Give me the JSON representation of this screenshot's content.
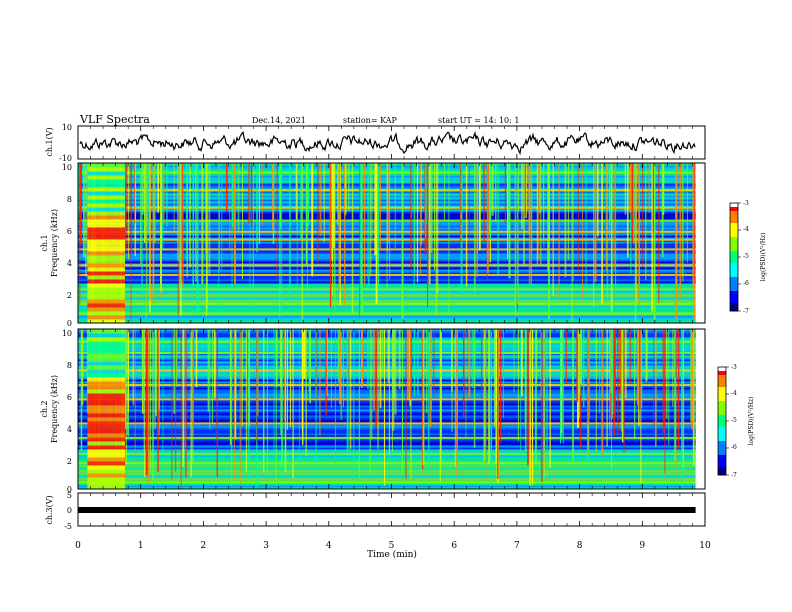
{
  "header": {
    "title": "VLF Spectra",
    "date": "Dec.14, 2021",
    "station": "station= KAP",
    "start": "start UT =  14: 10: 1"
  },
  "chart_data": [
    {
      "type": "line",
      "name": "ch1-waveform",
      "ylabel": "ch.1(V)",
      "ylim": [
        -10,
        10
      ],
      "yticks": [
        "10",
        "-10"
      ],
      "xlim": [
        0,
        10
      ],
      "series_color": "#000000"
    },
    {
      "type": "heatmap",
      "name": "ch1-spectrogram",
      "ylabel": "ch.1\nFrequency (kHz)",
      "ylabel_top": "ch.1",
      "ylabel_bottom": "Frequency (kHz)",
      "ylim": [
        0,
        10
      ],
      "yticks": [
        "0",
        "2",
        "4",
        "6",
        "8",
        "10"
      ],
      "xlim": [
        0,
        10
      ],
      "colorbar": {
        "label": "log(PSD)(V²/Hz)",
        "range": [
          -7,
          -3
        ],
        "ticks": [
          "-3",
          "-4",
          "-5",
          "-6",
          "-7"
        ],
        "colors": [
          "#000080",
          "#0000ff",
          "#0080ff",
          "#00ffff",
          "#00ff80",
          "#80ff00",
          "#ffff00",
          "#ff8000",
          "#ff0000",
          "#ffffff"
        ]
      },
      "bands_khz": [
        0.6,
        1.2,
        2.1,
        3.0,
        3.6,
        4.6,
        5.2,
        5.7,
        6.4,
        7.2,
        8.3,
        9.4
      ],
      "burst_min": [
        0.15,
        0.75
      ]
    },
    {
      "type": "heatmap",
      "name": "ch2-spectrogram",
      "ylabel_top": "ch.2",
      "ylabel_bottom": "Frequency (kHz)",
      "ylim": [
        0,
        10
      ],
      "yticks": [
        "0",
        "2",
        "4",
        "6",
        "8",
        "10"
      ],
      "xlim": [
        0,
        10
      ],
      "colorbar": {
        "label": "log(PSD)(V²/Hz)",
        "range": [
          -7,
          -3
        ],
        "ticks": [
          "-3",
          "-4",
          "-5",
          "-6",
          "-7"
        ]
      },
      "bands_khz": [
        0.4,
        1.6,
        2.2,
        3.2,
        4.1,
        5.6,
        6.5,
        7.4,
        8.5,
        9.2
      ],
      "burst_min": [
        0.15,
        0.75
      ]
    },
    {
      "type": "line",
      "name": "ch3-waveform",
      "ylabel": "ch.3(V)",
      "ylim": [
        -5,
        5
      ],
      "yticks": [
        "5",
        "0",
        "-5"
      ],
      "xlim": [
        0,
        10
      ],
      "xticks": [
        "0",
        "1",
        "2",
        "3",
        "4",
        "5",
        "6",
        "7",
        "8",
        "9",
        "10"
      ],
      "xlabel": "Time (min)",
      "end_min": 9.85
    }
  ]
}
